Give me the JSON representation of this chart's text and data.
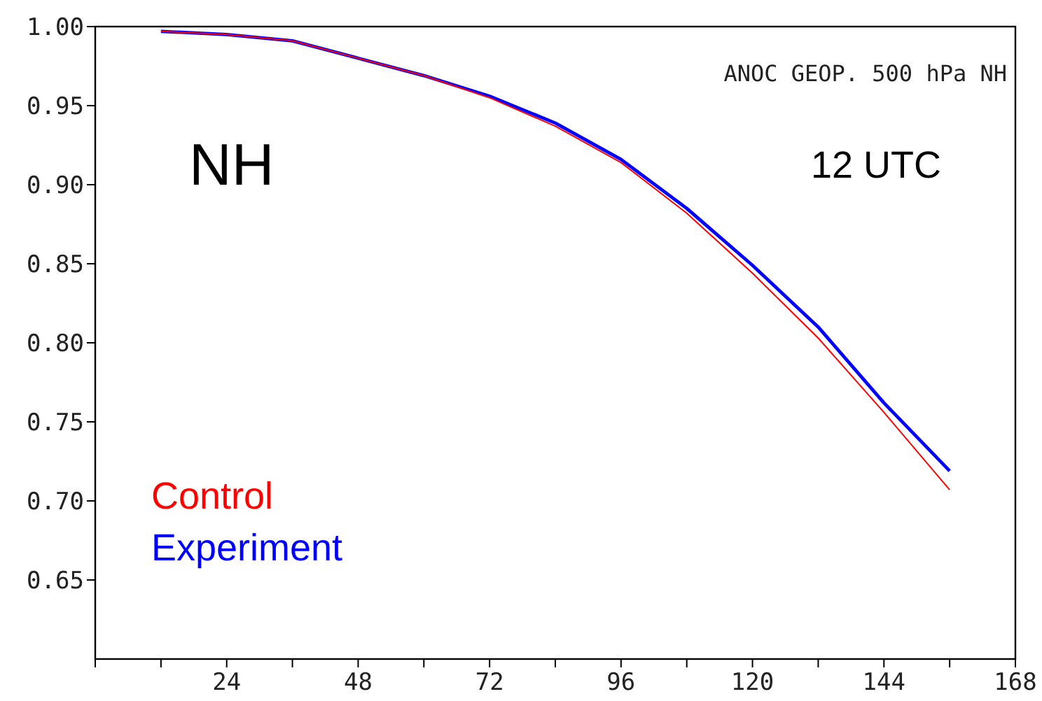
{
  "chart_data": {
    "type": "line",
    "title": "ANOC GEOP. 500 hPa NH",
    "annotations": [
      "NH",
      "12 UTC"
    ],
    "x": [
      12,
      24,
      36,
      48,
      60,
      72,
      84,
      96,
      108,
      120,
      132,
      144,
      156
    ],
    "series": [
      {
        "name": "Control",
        "color": "#ff0000",
        "values": [
          0.997,
          0.995,
          0.991,
          0.98,
          0.969,
          0.955,
          0.937,
          0.914,
          0.882,
          0.844,
          0.803,
          0.756,
          0.707
        ]
      },
      {
        "name": "Experiment",
        "color": "#0000ff",
        "values": [
          0.997,
          0.995,
          0.991,
          0.98,
          0.969,
          0.956,
          0.939,
          0.916,
          0.885,
          0.849,
          0.81,
          0.762,
          0.719
        ]
      }
    ],
    "xlim": [
      0,
      168
    ],
    "xticks": [
      {
        "value": 0,
        "label": null
      },
      {
        "value": 12,
        "label": null
      },
      24,
      {
        "value": 36,
        "label": null
      },
      48,
      {
        "value": 60,
        "label": null
      },
      72,
      {
        "value": 84,
        "label": null
      },
      96,
      {
        "value": 108,
        "label": null
      },
      120,
      {
        "value": 132,
        "label": null
      },
      144,
      {
        "value": 156,
        "label": null
      },
      168
    ],
    "ylim": [
      0.6,
      1.0
    ],
    "yticks": [
      0.65,
      {
        "value": 0.7,
        "label": "0.70"
      },
      0.75,
      {
        "value": 0.8,
        "label": "0.80"
      },
      0.85,
      {
        "value": 0.9,
        "label": "0.90"
      },
      0.95,
      {
        "value": 1.0,
        "label": "1.00"
      }
    ],
    "legend": "bottom left",
    "grid": false,
    "marker": "none",
    "line_style": "solid"
  }
}
